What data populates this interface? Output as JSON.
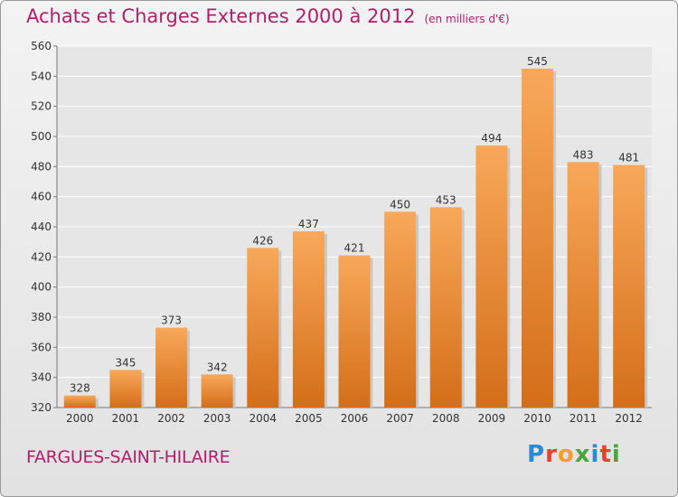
{
  "title": "Achats et Charges Externes 2000 à 2012",
  "unit": "(en milliers d'€)",
  "commune": "FARGUES-SAINT-HILAIRE",
  "brand": "Proxiti",
  "colors": {
    "title": "#b01f6a",
    "bar_light": "#f8a85a",
    "bar_dark": "#d46e18"
  },
  "chart_data": {
    "type": "bar",
    "categories": [
      "2000",
      "2001",
      "2002",
      "2003",
      "2004",
      "2005",
      "2006",
      "2007",
      "2008",
      "2009",
      "2010",
      "2011",
      "2012"
    ],
    "values": [
      328,
      345,
      373,
      342,
      426,
      437,
      421,
      450,
      453,
      494,
      545,
      483,
      481
    ],
    "ylim": [
      320,
      560
    ],
    "yticks": [
      320,
      340,
      360,
      380,
      400,
      420,
      440,
      460,
      480,
      500,
      520,
      540,
      560
    ],
    "grid": true
  }
}
